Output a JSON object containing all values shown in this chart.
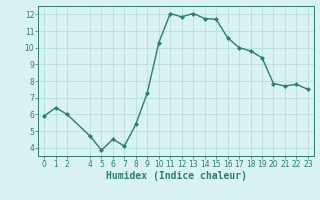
{
  "x": [
    0,
    1,
    2,
    4,
    5,
    6,
    7,
    8,
    9,
    10,
    11,
    12,
    13,
    14,
    15,
    16,
    17,
    18,
    19,
    20,
    21,
    22,
    23
  ],
  "y": [
    5.9,
    6.4,
    6.0,
    4.7,
    3.85,
    4.5,
    4.1,
    5.4,
    7.3,
    10.3,
    12.05,
    11.85,
    12.05,
    11.75,
    11.7,
    10.6,
    10.0,
    9.8,
    9.4,
    7.85,
    7.7,
    7.8,
    7.5
  ],
  "line_color": "#2e7d6e",
  "marker": "D",
  "marker_size": 2.0,
  "bg_color": "#d9f2f2",
  "grid_color": "#b8dede",
  "xlabel": "Humidex (Indice chaleur)",
  "ylim": [
    3.5,
    12.5
  ],
  "xlim": [
    -0.5,
    23.5
  ],
  "yticks": [
    4,
    5,
    6,
    7,
    8,
    9,
    10,
    11,
    12
  ],
  "xticks": [
    0,
    1,
    2,
    4,
    5,
    6,
    7,
    8,
    9,
    10,
    11,
    12,
    13,
    14,
    15,
    16,
    17,
    18,
    19,
    20,
    21,
    22,
    23
  ],
  "tick_fontsize": 5.5,
  "xlabel_fontsize": 7.0,
  "line_width": 1.0
}
